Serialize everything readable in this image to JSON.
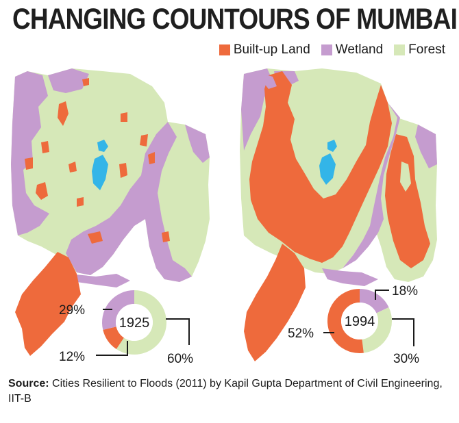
{
  "title": "CHANGING COUNTOURS OF MUMBAI",
  "legend": [
    {
      "label": "Built-up Land",
      "color": "#ee6a3c"
    },
    {
      "label": "Wetland",
      "color": "#c59ccf"
    },
    {
      "label": "Forest",
      "color": "#d6e8b8"
    }
  ],
  "maps": [
    {
      "year": "1925",
      "donut": {
        "built_up": 12,
        "wetland": 29,
        "forest": 60
      },
      "labels": {
        "built_up": "12%",
        "wetland": "29%",
        "forest": "60%"
      }
    },
    {
      "year": "1994",
      "donut": {
        "built_up": 52,
        "wetland": 18,
        "forest": 30
      },
      "labels": {
        "built_up": "52%",
        "wetland": "18%",
        "forest": "30%"
      }
    }
  ],
  "colors": {
    "built_up": "#ee6a3c",
    "wetland": "#c59ccf",
    "forest": "#d6e8b8",
    "water": "#33b5e8"
  },
  "source": {
    "label": "Source:",
    "text": " Cities Resilient to Floods (2011) by Kapil Gupta Department of Civil Engineering, IIT-B"
  }
}
